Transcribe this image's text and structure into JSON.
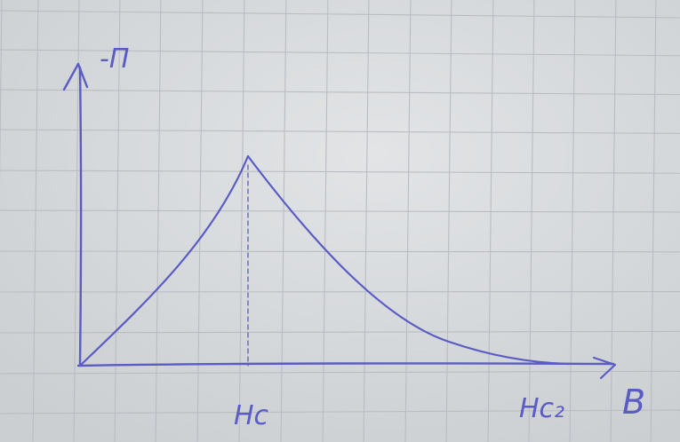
{
  "colors": {
    "paper": "#d9dcde",
    "grid": "#b9bcc3",
    "ink": "#5b5bc4"
  },
  "labels": {
    "y_axis": "-П",
    "x_axis": "B",
    "hc": "Hc",
    "hc2": "Hc₂"
  }
}
